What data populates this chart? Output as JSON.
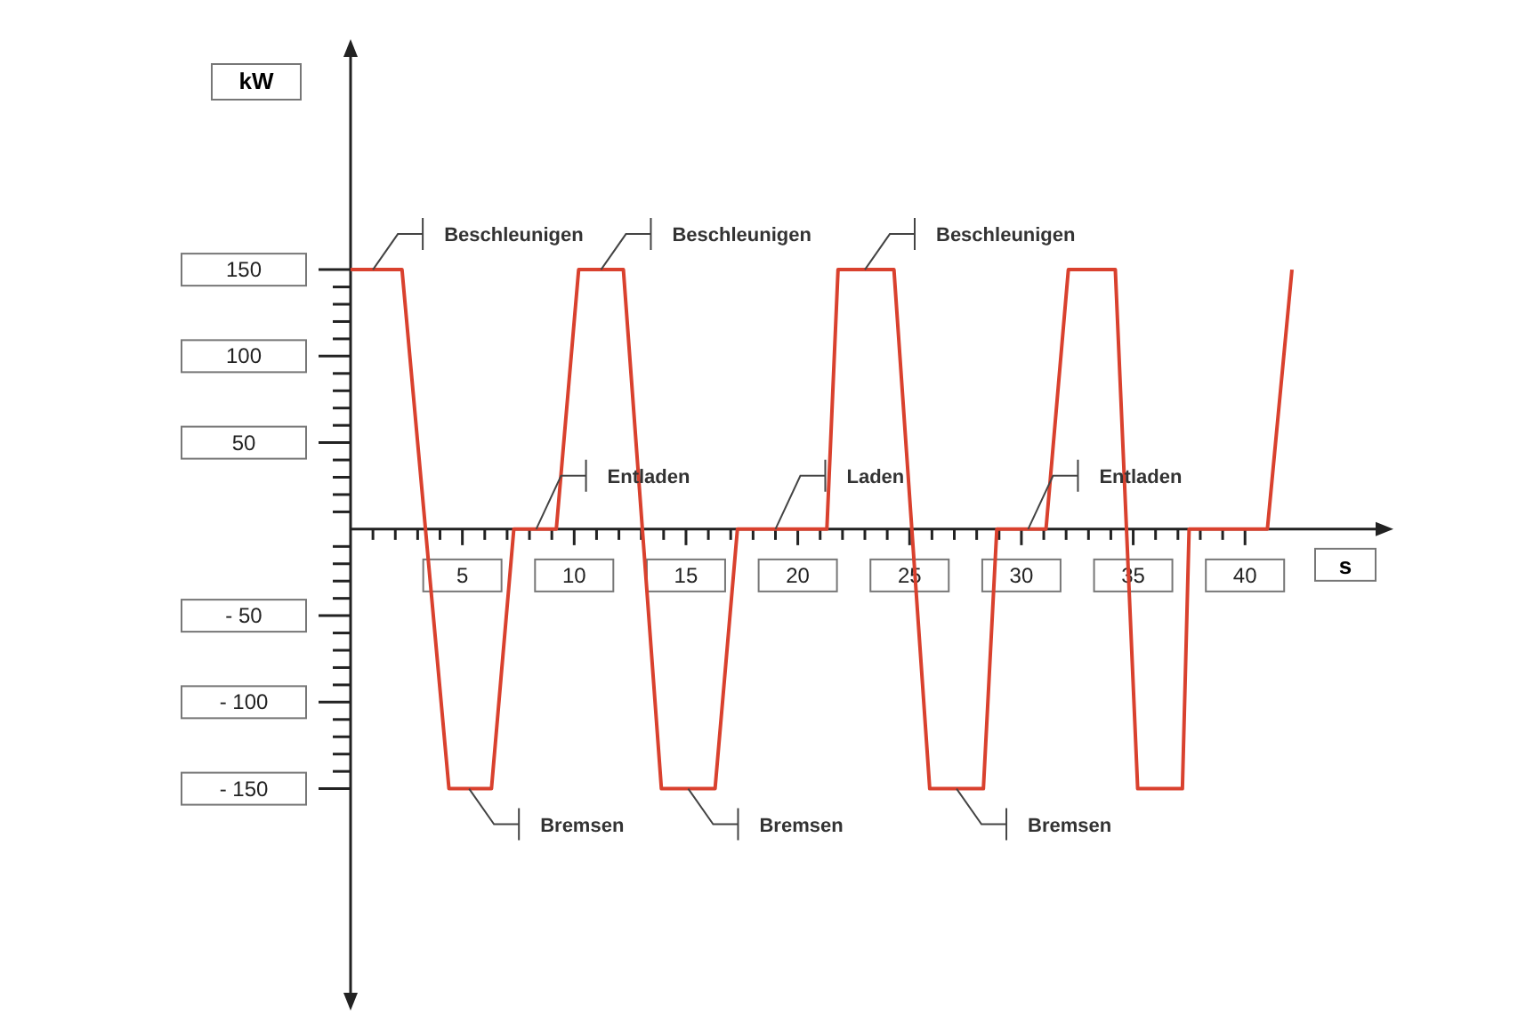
{
  "chart_data": {
    "type": "line",
    "xlabel": "s",
    "ylabel": "kW",
    "x": [
      0,
      2.3,
      4.4,
      6.3,
      7.3,
      9.2,
      10.2,
      12.2,
      13.9,
      16.3,
      17.3,
      21.3,
      21.8,
      24.3,
      25.9,
      28.3,
      28.9,
      31.1,
      32.1,
      34.2,
      35.2,
      37.2,
      37.5,
      41.0,
      42.1
    ],
    "series": [
      {
        "color": "#d9412e",
        "values": [
          150,
          150,
          -150,
          -150,
          0,
          0,
          150,
          150,
          -150,
          -150,
          0,
          0,
          150,
          150,
          -150,
          -150,
          0,
          0,
          150,
          150,
          -150,
          -150,
          0,
          0,
          150
        ]
      }
    ],
    "xlim": [
      0,
      46
    ],
    "ylim": [
      -270,
      275
    ],
    "xticks": [
      {
        "value": 1,
        "label": null
      },
      {
        "value": 2,
        "label": null
      },
      {
        "value": 3,
        "label": null
      },
      {
        "value": 4,
        "label": null
      },
      5,
      {
        "value": 6,
        "label": null
      },
      {
        "value": 7,
        "label": null
      },
      {
        "value": 8,
        "label": null
      },
      {
        "value": 9,
        "label": null
      },
      10,
      {
        "value": 11,
        "label": null
      },
      {
        "value": 12,
        "label": null
      },
      {
        "value": 13,
        "label": null
      },
      {
        "value": 14,
        "label": null
      },
      15,
      {
        "value": 16,
        "label": null
      },
      {
        "value": 17,
        "label": null
      },
      {
        "value": 18,
        "label": null
      },
      {
        "value": 19,
        "label": null
      },
      20,
      {
        "value": 21,
        "label": null
      },
      {
        "value": 22,
        "label": null
      },
      {
        "value": 23,
        "label": null
      },
      {
        "value": 24,
        "label": null
      },
      25,
      {
        "value": 26,
        "label": null
      },
      {
        "value": 27,
        "label": null
      },
      {
        "value": 28,
        "label": null
      },
      {
        "value": 29,
        "label": null
      },
      30,
      {
        "value": 31,
        "label": null
      },
      {
        "value": 32,
        "label": null
      },
      {
        "value": 33,
        "label": null
      },
      {
        "value": 34,
        "label": null
      },
      35,
      {
        "value": 36,
        "label": null
      },
      {
        "value": 37,
        "label": null
      },
      {
        "value": 38,
        "label": null
      },
      {
        "value": 39,
        "label": null
      },
      40
    ],
    "yticks": [
      {
        "value": -150,
        "label": "- 150"
      },
      {
        "value": -140,
        "label": null
      },
      {
        "value": -130,
        "label": null
      },
      {
        "value": -120,
        "label": null
      },
      {
        "value": -110,
        "label": null
      },
      {
        "value": -100,
        "label": "- 100"
      },
      {
        "value": -90,
        "label": null
      },
      {
        "value": -80,
        "label": null
      },
      {
        "value": -70,
        "label": null
      },
      {
        "value": -60,
        "label": null
      },
      {
        "value": -50,
        "label": "- 50"
      },
      {
        "value": -40,
        "label": null
      },
      {
        "value": -30,
        "label": null
      },
      {
        "value": -20,
        "label": null
      },
      {
        "value": -10,
        "label": null
      },
      {
        "value": 10,
        "label": null
      },
      {
        "value": 20,
        "label": null
      },
      {
        "value": 30,
        "label": null
      },
      {
        "value": 40,
        "label": null
      },
      50,
      {
        "value": 60,
        "label": null
      },
      {
        "value": 70,
        "label": null
      },
      {
        "value": 80,
        "label": null
      },
      {
        "value": 90,
        "label": null
      },
      100,
      {
        "value": 110,
        "label": null
      },
      {
        "value": 120,
        "label": null
      },
      {
        "value": 130,
        "label": null
      },
      {
        "value": 140,
        "label": null
      },
      150
    ],
    "grid": false,
    "marker": "none",
    "line_style": "solid",
    "annotations": [
      {
        "text": "Beschleunigen",
        "x": 1,
        "y": 150
      },
      {
        "text": "Beschleunigen",
        "x": 11.2,
        "y": 150
      },
      {
        "text": "Beschleunigen",
        "x": 23,
        "y": 150
      },
      {
        "text": "Entladen",
        "x": 8.3,
        "y": 0
      },
      {
        "text": "Laden",
        "x": 19,
        "y": 0
      },
      {
        "text": "Entladen",
        "x": 30.3,
        "y": 0
      },
      {
        "text": "Bremsen",
        "x": 5.3,
        "y": -150
      },
      {
        "text": "Bremsen",
        "x": 15.1,
        "y": -150
      },
      {
        "text": "Bremsen",
        "x": 27.1,
        "y": -150
      }
    ]
  }
}
